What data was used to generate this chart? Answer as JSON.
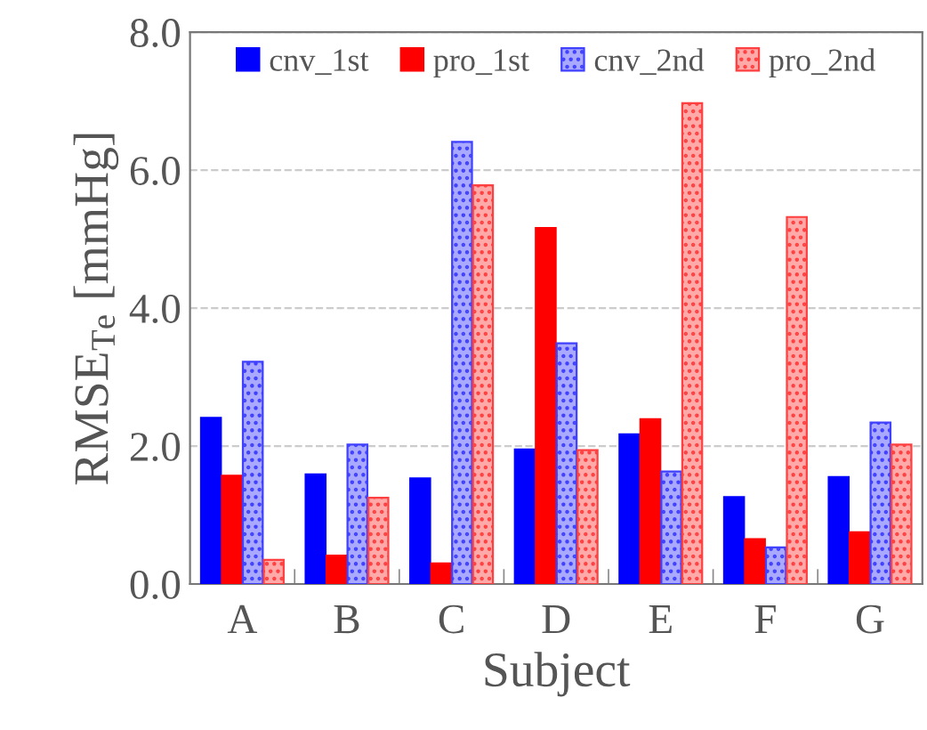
{
  "chart_data": {
    "type": "bar",
    "xlabel": "Subject",
    "ylabel": "RMSE$_{Te}$ [mmHg]",
    "categories": [
      "A",
      "B",
      "C",
      "D",
      "E",
      "F",
      "G"
    ],
    "series": [
      {
        "name": "cnv_1st",
        "color": "#0000ff",
        "values": [
          2.41,
          1.59,
          1.53,
          1.95,
          2.17,
          1.26,
          1.55
        ]
      },
      {
        "name": "pro_1st",
        "color": "#ff0000",
        "values": [
          1.57,
          0.41,
          0.3,
          5.16,
          2.39,
          0.65,
          0.75
        ]
      },
      {
        "name": "cnv_2nd",
        "color": "#4040ff",
        "values": [
          3.22,
          2.02,
          6.41,
          3.49,
          1.63,
          0.53,
          2.34
        ]
      },
      {
        "name": "pro_2nd",
        "color": "#ff4040",
        "values": [
          0.35,
          1.25,
          5.78,
          1.94,
          6.97,
          5.32,
          2.02
        ]
      }
    ],
    "ylim": [
      0,
      8
    ],
    "yticks": [
      {
        "value": 0,
        "label": "0.0"
      },
      {
        "value": 2,
        "label": "2.0"
      },
      {
        "value": 4,
        "label": "4.0"
      },
      {
        "value": 6,
        "label": "6.0"
      },
      {
        "value": 8,
        "label": "8.0"
      }
    ],
    "grid": "y",
    "legend": "top"
  }
}
